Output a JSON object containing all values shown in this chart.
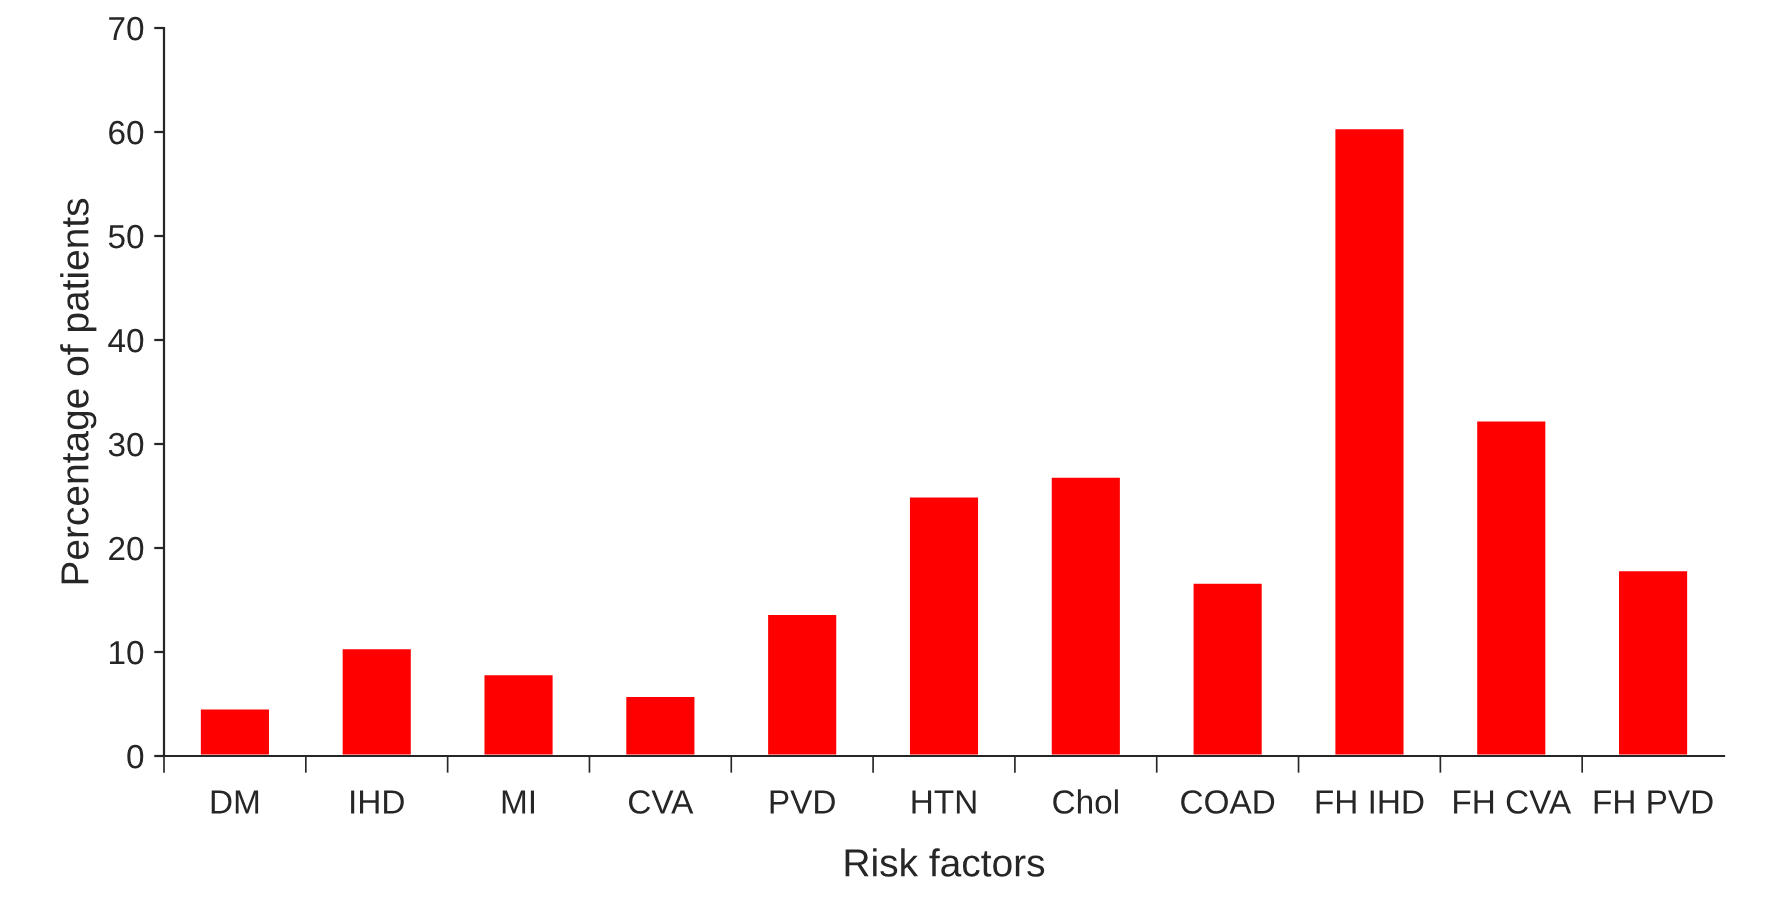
{
  "chart_data": {
    "type": "bar",
    "xlabel": "Risk factors",
    "ylabel": "Percentage of patients",
    "categories": [
      "DM",
      "IHD",
      "MI",
      "CVA",
      "PVD",
      "HTN",
      "Chol",
      "COAD",
      "FH IHD",
      "FH CVA",
      "FH PVD"
    ],
    "values": [
      4.6,
      10.4,
      7.9,
      5.8,
      13.7,
      25.0,
      26.9,
      16.7,
      60.4,
      32.3,
      17.9
    ],
    "color": "#ff0000",
    "ylim": [
      0,
      70
    ],
    "yticks": [
      0,
      10,
      20,
      30,
      40,
      50,
      60,
      70
    ],
    "grid": false,
    "legend": false
  }
}
